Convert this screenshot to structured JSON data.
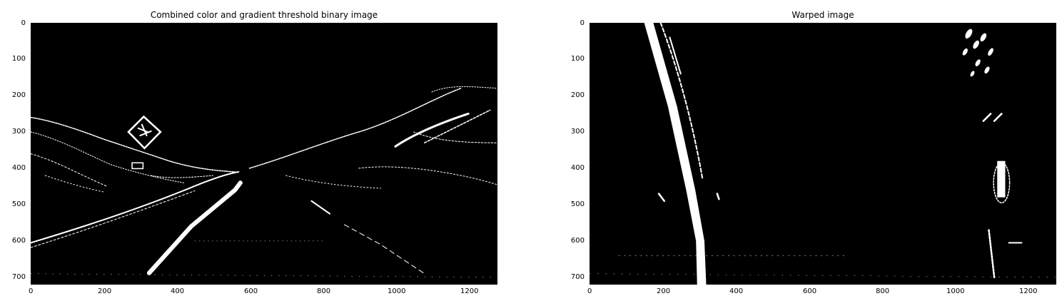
{
  "panels": [
    {
      "title": "Combined color and gradient threshold binary image",
      "x_ticks": [
        "0",
        "200",
        "400",
        "600",
        "800",
        "1000",
        "1200"
      ],
      "y_ticks": [
        "0",
        "100",
        "200",
        "300",
        "400",
        "500",
        "600",
        "700"
      ],
      "xlim": [
        0,
        1280
      ],
      "ylim": [
        720,
        0
      ]
    },
    {
      "title": "Warped image",
      "x_ticks": [
        "0",
        "200",
        "400",
        "600",
        "800",
        "1000",
        "1200"
      ],
      "y_ticks": [
        "0",
        "100",
        "200",
        "300",
        "400",
        "500",
        "600",
        "700"
      ],
      "xlim": [
        0,
        1280
      ],
      "ylim": [
        720,
        0
      ]
    }
  ]
}
